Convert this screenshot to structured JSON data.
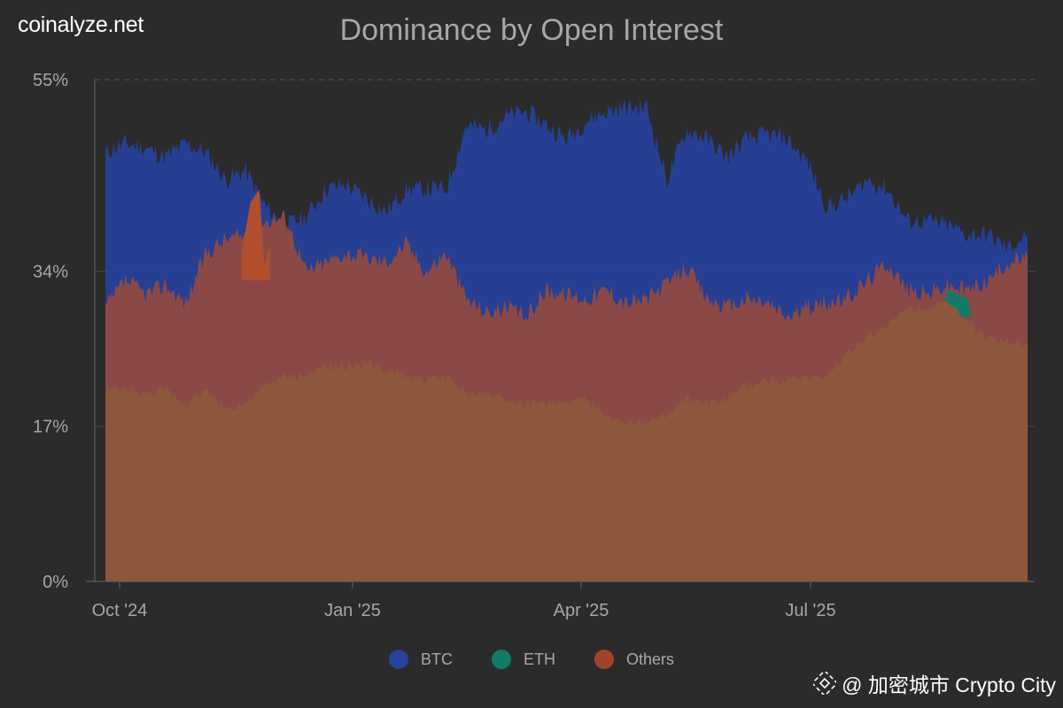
{
  "brand": "coinalyze.net",
  "watermark": {
    "text": "@ 加密城市 Crypto City",
    "logo": "binance-diamond-icon"
  },
  "colors": {
    "background": "#2b2b2b",
    "btc": "#27419c",
    "eth": "#137a6a",
    "others": "#a0442c",
    "others_area": "#8f4a42",
    "btc_overlap": "#8d573c"
  },
  "chart_data": {
    "type": "area",
    "title": "Dominance by Open Interest",
    "ylim": [
      0,
      55
    ],
    "y_ticks": [
      {
        "value": 0,
        "label": "0%"
      },
      {
        "value": 17,
        "label": "17%"
      },
      {
        "value": 34,
        "label": "34%"
      },
      {
        "value": 55,
        "label": "55%"
      }
    ],
    "x_ticks": [
      "Oct '24",
      "Jan '25",
      "Apr '25",
      "Jul '25"
    ],
    "x": [
      "Oct '24",
      "Oct '24",
      "Oct '24",
      "Oct '24",
      "Nov '24",
      "Nov '24",
      "Nov '24",
      "Nov '24",
      "Nov '24",
      "Dec '24",
      "Dec '24",
      "Dec '24",
      "Dec '24",
      "Jan '25",
      "Jan '25",
      "Jan '25",
      "Jan '25",
      "Feb '25",
      "Feb '25",
      "Feb '25",
      "Feb '25",
      "Mar '25",
      "Mar '25",
      "Mar '25",
      "Mar '25",
      "Apr '25",
      "Apr '25",
      "Apr '25",
      "Apr '25",
      "May '25",
      "May '25",
      "May '25",
      "May '25",
      "Jun '25",
      "Jun '25",
      "Jun '25",
      "Jun '25",
      "Jul '25",
      "Jul '25",
      "Jul '25",
      "Jul '25",
      "Aug '25",
      "Aug '25",
      "Aug '25",
      "Aug '25",
      "Sep '25",
      "Sep '25"
    ],
    "series": [
      {
        "name": "BTC",
        "values": [
          47,
          48,
          47.5,
          46.5,
          48,
          47,
          44,
          45,
          41,
          39,
          40,
          43,
          43.5,
          42,
          40.5,
          43,
          43,
          43,
          50,
          49.5,
          51,
          51.5,
          50,
          48.5,
          50.5,
          51.5,
          52,
          52,
          44,
          49.5,
          48.5,
          46.5,
          48.5,
          49,
          48.5,
          46,
          41,
          42,
          44,
          43,
          39.5,
          39.5,
          39,
          38,
          38,
          36.5,
          38
        ]
      },
      {
        "name": "ETH",
        "values": [
          null,
          null,
          null,
          null,
          null,
          null,
          null,
          null,
          null,
          null,
          null,
          null,
          null,
          null,
          null,
          null,
          null,
          null,
          null,
          null,
          null,
          null,
          null,
          null,
          null,
          null,
          null,
          null,
          null,
          null,
          null,
          null,
          null,
          null,
          null,
          null,
          null,
          null,
          null,
          null,
          null,
          null,
          32,
          31,
          null,
          null,
          null
        ]
      },
      {
        "name": "Others",
        "values": [
          30,
          33,
          31.5,
          32.5,
          30.5,
          36,
          37.5,
          38,
          39.5,
          40,
          34,
          35,
          36,
          35.5,
          35,
          37,
          34,
          36,
          31,
          29.5,
          30,
          29,
          32,
          31.5,
          31,
          32,
          30.5,
          31,
          32.5,
          34.5,
          31,
          30,
          31,
          30.5,
          29,
          30,
          30.5,
          31,
          33,
          35,
          32,
          31.5,
          32.5,
          32,
          33,
          35,
          35.5
        ]
      },
      {
        "name": "",
        "values": [
          21,
          21,
          20.5,
          21,
          19.5,
          21,
          19,
          19.5,
          21.5,
          22.5,
          22.5,
          23.5,
          23.5,
          24,
          23,
          22.5,
          22,
          22.5,
          20.5,
          20.5,
          20,
          19.5,
          19.5,
          19.5,
          20,
          18,
          17.5,
          17.5,
          18,
          20,
          19.5,
          20,
          21.5,
          22,
          22,
          22.5,
          22.5,
          25,
          27,
          28,
          30,
          30,
          30.5,
          28.5,
          26.5,
          26.5,
          26
        ]
      }
    ]
  }
}
